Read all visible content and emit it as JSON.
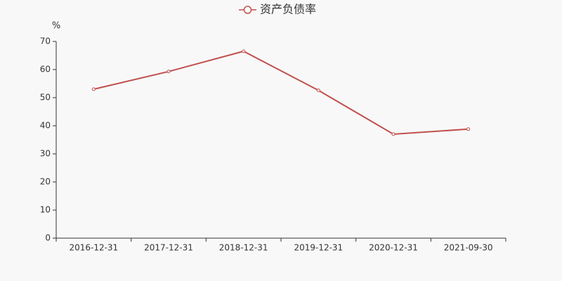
{
  "chart_data": {
    "type": "line",
    "y_label": "%",
    "categories": [
      "2016-12-31",
      "2017-12-31",
      "2018-12-31",
      "2019-12-31",
      "2020-12-31",
      "2021-09-30"
    ],
    "series": [
      {
        "name": "资产负债率",
        "color": "#c0504d",
        "values": [
          53.0,
          59.3,
          66.5,
          52.6,
          37.0,
          38.8
        ]
      }
    ],
    "ylim": [
      0,
      70
    ],
    "yticks": [
      0,
      10,
      20,
      30,
      40,
      50,
      60,
      70
    ],
    "grid": false,
    "legend": "top"
  }
}
